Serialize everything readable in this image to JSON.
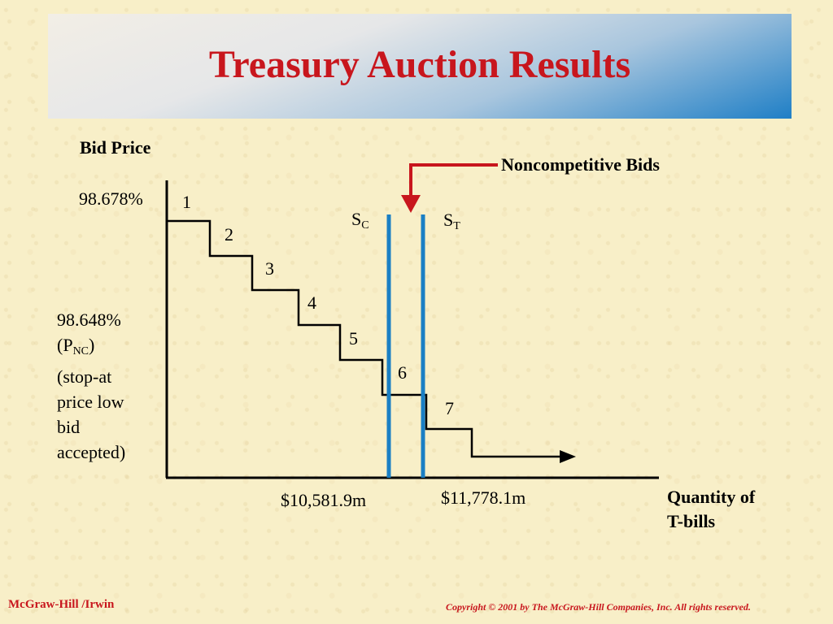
{
  "title": "Treasury Auction Results",
  "y_axis_label": "Bid Price",
  "x_axis_label_line1": "Quantity of",
  "x_axis_label_line2": "T-bills",
  "price_high": "98.678%",
  "price_low": "98.648%",
  "p_nc_prefix": "(P",
  "p_nc_sub": "NC",
  "p_nc_suffix": ")",
  "stopat_lines": [
    "(stop-at",
    "price low",
    "bid",
    "accepted)"
  ],
  "noncompetitive_label": "Noncompetitive Bids",
  "s_c_main": "S",
  "s_c_sub": "C",
  "s_t_main": "S",
  "s_t_sub": "T",
  "qty_competitive": "$10,581.9m",
  "qty_total": "$11,778.1m",
  "steps": [
    "1",
    "2",
    "3",
    "4",
    "5",
    "6",
    "7"
  ],
  "colors": {
    "title": "#c8161d",
    "supply_lines": "#1a7fc4",
    "arrow": "#c8161d"
  },
  "footer_left": "McGraw-Hill /Irwin",
  "footer_right": "Copyright © 2001 by The McGraw-Hill Companies, Inc.  All rights reserved."
}
